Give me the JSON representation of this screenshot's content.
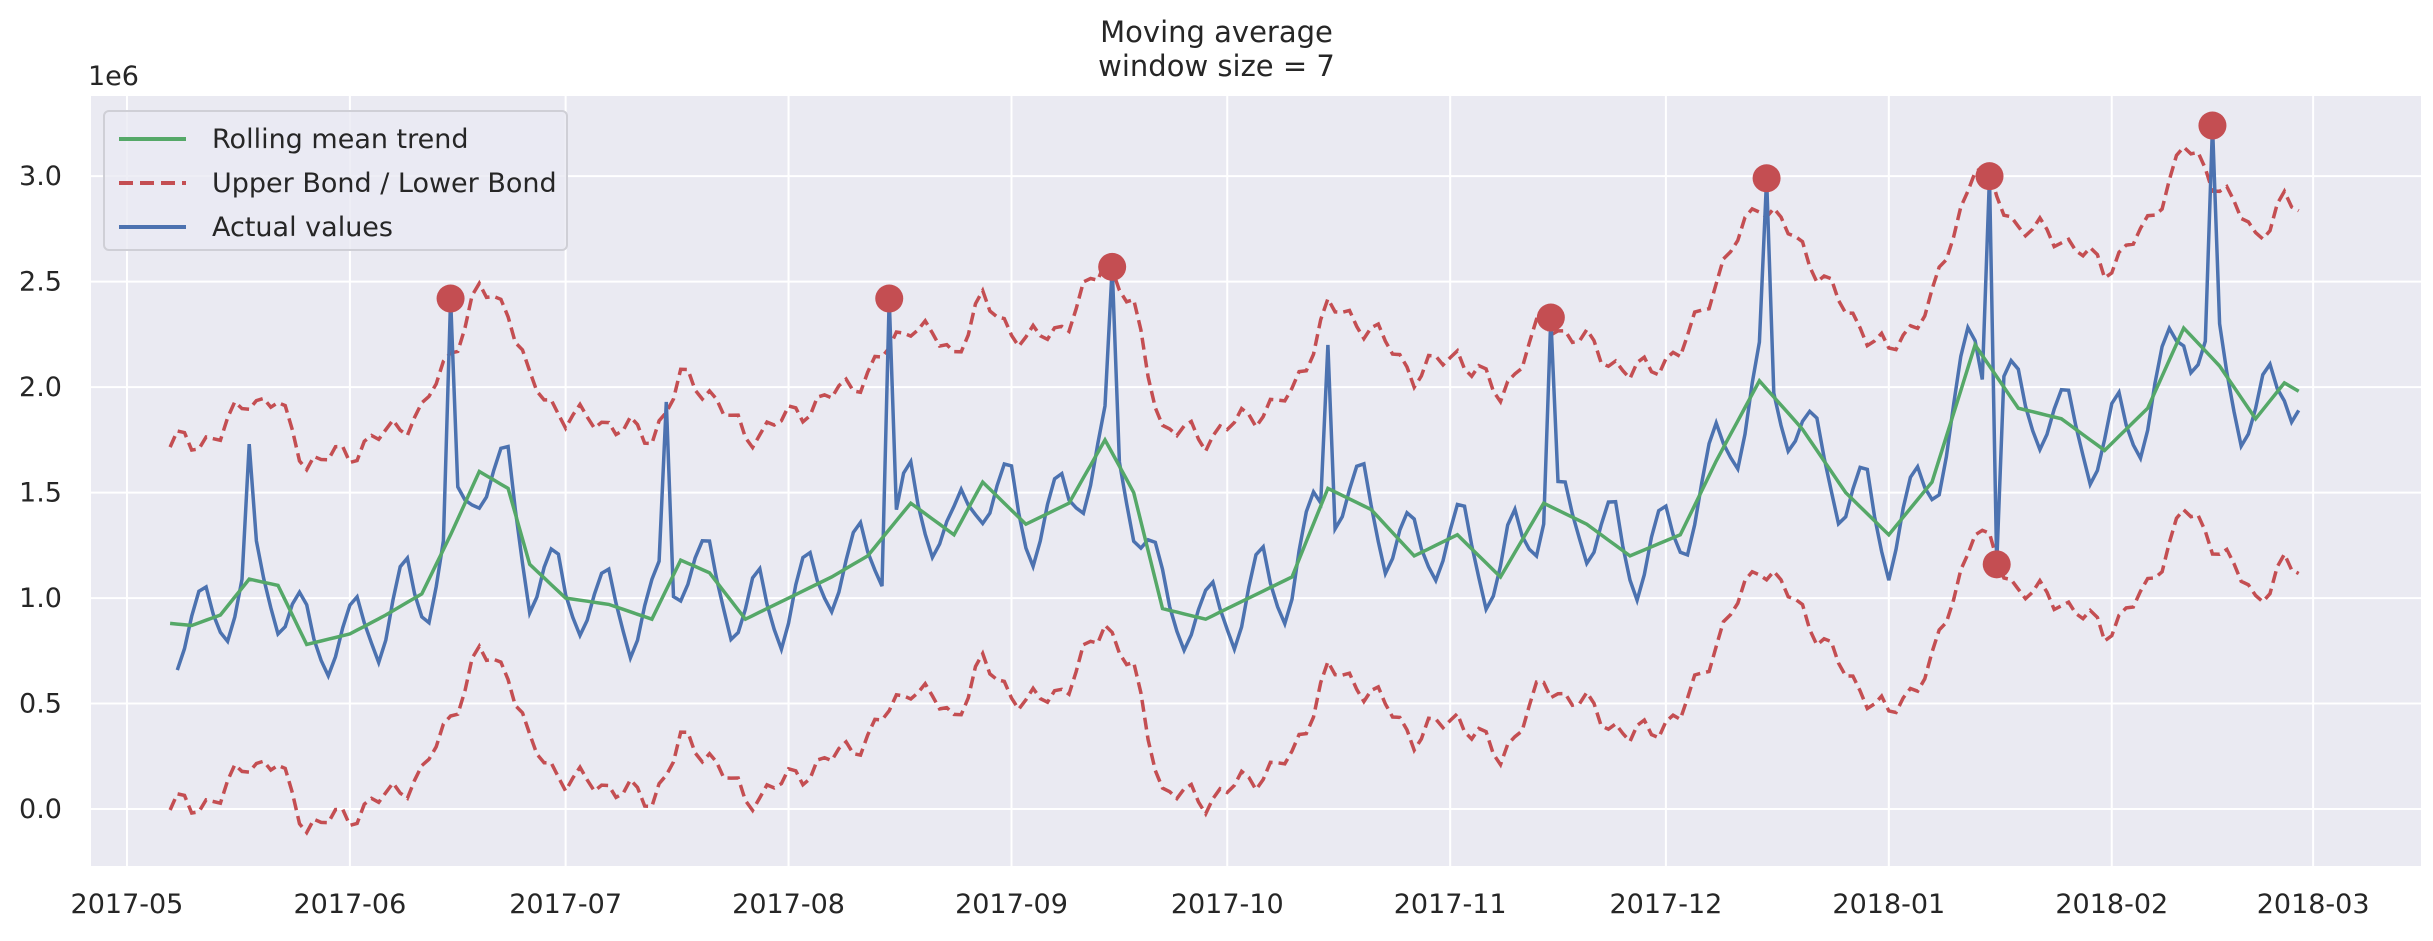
{
  "title": {
    "line1": "Moving average",
    "line2": "window size = 7"
  },
  "chart_data": {
    "type": "line",
    "title": "Moving average\nwindow size = 7",
    "xlabel": "",
    "ylabel": "",
    "y_offset_label": "1e6",
    "xlim": [
      "2017-04-26",
      "2018-03-16"
    ],
    "ylim": [
      -0.27,
      3.38
    ],
    "grid": true,
    "legend_position": "upper-left",
    "x_ticks": [
      "2017-05",
      "2017-06",
      "2017-07",
      "2017-08",
      "2017-09",
      "2017-10",
      "2017-11",
      "2017-12",
      "2018-01",
      "2018-02",
      "2018-03"
    ],
    "y_ticks": [
      "0.0",
      "0.5",
      "1.0",
      "1.5",
      "2.0",
      "2.5",
      "3.0"
    ],
    "start_date": "2017-05-08",
    "series": [
      {
        "name": "Rolling mean trend",
        "color": "#55a868",
        "style": "solid",
        "key_points": [
          {
            "x": "2017-05-07",
            "y": 0.88
          },
          {
            "x": "2017-05-10",
            "y": 0.87
          },
          {
            "x": "2017-05-14",
            "y": 0.92
          },
          {
            "x": "2017-05-18",
            "y": 1.09
          },
          {
            "x": "2017-05-22",
            "y": 1.06
          },
          {
            "x": "2017-05-26",
            "y": 0.78
          },
          {
            "x": "2017-06-01",
            "y": 0.83
          },
          {
            "x": "2017-06-06",
            "y": 0.92
          },
          {
            "x": "2017-06-11",
            "y": 1.02
          },
          {
            "x": "2017-06-15",
            "y": 1.3
          },
          {
            "x": "2017-06-19",
            "y": 1.6
          },
          {
            "x": "2017-06-23",
            "y": 1.52
          },
          {
            "x": "2017-06-26",
            "y": 1.16
          },
          {
            "x": "2017-07-01",
            "y": 1.0
          },
          {
            "x": "2017-07-07",
            "y": 0.97
          },
          {
            "x": "2017-07-13",
            "y": 0.9
          },
          {
            "x": "2017-07-17",
            "y": 1.18
          },
          {
            "x": "2017-07-21",
            "y": 1.12
          },
          {
            "x": "2017-07-26",
            "y": 0.9
          },
          {
            "x": "2017-08-01",
            "y": 1.0
          },
          {
            "x": "2017-08-07",
            "y": 1.1
          },
          {
            "x": "2017-08-12",
            "y": 1.2
          },
          {
            "x": "2017-08-18",
            "y": 1.45
          },
          {
            "x": "2017-08-24",
            "y": 1.3
          },
          {
            "x": "2017-08-28",
            "y": 1.55
          },
          {
            "x": "2017-09-03",
            "y": 1.35
          },
          {
            "x": "2017-09-09",
            "y": 1.45
          },
          {
            "x": "2017-09-14",
            "y": 1.75
          },
          {
            "x": "2017-09-18",
            "y": 1.5
          },
          {
            "x": "2017-09-22",
            "y": 0.95
          },
          {
            "x": "2017-09-28",
            "y": 0.9
          },
          {
            "x": "2017-10-04",
            "y": 1.0
          },
          {
            "x": "2017-10-10",
            "y": 1.1
          },
          {
            "x": "2017-10-15",
            "y": 1.52
          },
          {
            "x": "2017-10-21",
            "y": 1.42
          },
          {
            "x": "2017-10-27",
            "y": 1.2
          },
          {
            "x": "2017-11-02",
            "y": 1.3
          },
          {
            "x": "2017-11-08",
            "y": 1.1
          },
          {
            "x": "2017-11-14",
            "y": 1.45
          },
          {
            "x": "2017-11-20",
            "y": 1.35
          },
          {
            "x": "2017-11-26",
            "y": 1.2
          },
          {
            "x": "2017-12-03",
            "y": 1.3
          },
          {
            "x": "2017-12-08",
            "y": 1.65
          },
          {
            "x": "2017-12-14",
            "y": 2.03
          },
          {
            "x": "2017-12-20",
            "y": 1.8
          },
          {
            "x": "2017-12-26",
            "y": 1.5
          },
          {
            "x": "2018-01-01",
            "y": 1.3
          },
          {
            "x": "2018-01-07",
            "y": 1.55
          },
          {
            "x": "2018-01-13",
            "y": 2.2
          },
          {
            "x": "2018-01-19",
            "y": 1.9
          },
          {
            "x": "2018-01-25",
            "y": 1.85
          },
          {
            "x": "2018-01-31",
            "y": 1.7
          },
          {
            "x": "2018-02-06",
            "y": 1.9
          },
          {
            "x": "2018-02-11",
            "y": 2.28
          },
          {
            "x": "2018-02-16",
            "y": 2.1
          },
          {
            "x": "2018-02-21",
            "y": 1.85
          },
          {
            "x": "2018-02-25",
            "y": 2.02
          },
          {
            "x": "2018-02-27",
            "y": 1.98
          }
        ]
      },
      {
        "name": "Upper Bond / Lower Bond",
        "color": "#c44e52",
        "style": "dashed",
        "spread": 0.86,
        "note": "upper = rolling mean + spread, lower = rolling mean - spread (1e6 units)"
      },
      {
        "name": "Actual values",
        "color": "#4c72b0",
        "style": "solid",
        "base_trend": "rolling mean",
        "weekly_pattern": [
          -0.22,
          -0.12,
          0.05,
          0.18,
          0.2,
          0.02,
          -0.11
        ],
        "spikes": [
          {
            "x": "2017-05-18",
            "y": 1.73
          },
          {
            "x": "2017-06-15",
            "y": 2.42
          },
          {
            "x": "2017-07-15",
            "y": 1.93
          },
          {
            "x": "2017-08-15",
            "y": 2.42
          },
          {
            "x": "2017-09-15",
            "y": 2.57
          },
          {
            "x": "2017-10-15",
            "y": 2.2
          },
          {
            "x": "2017-11-15",
            "y": 2.33
          },
          {
            "x": "2017-12-15",
            "y": 2.99
          },
          {
            "x": "2018-01-15",
            "y": 3.0
          },
          {
            "x": "2018-02-15",
            "y": 3.24
          }
        ],
        "dips": [
          {
            "x": "2018-01-16",
            "y": 1.16
          }
        ]
      }
    ],
    "anomalies": {
      "color": "#c44e52",
      "points": [
        {
          "x": "2017-06-15",
          "y": 2.42
        },
        {
          "x": "2017-08-15",
          "y": 2.42
        },
        {
          "x": "2017-09-15",
          "y": 2.57
        },
        {
          "x": "2017-11-15",
          "y": 2.33
        },
        {
          "x": "2017-12-15",
          "y": 2.99
        },
        {
          "x": "2018-01-15",
          "y": 3.0
        },
        {
          "x": "2018-01-16",
          "y": 1.16
        },
        {
          "x": "2018-02-15",
          "y": 3.24
        }
      ]
    }
  },
  "legend": {
    "items": [
      {
        "label": "Rolling mean trend",
        "color": "#55a868",
        "style": "solid"
      },
      {
        "label": "Upper Bond / Lower Bond",
        "color": "#c44e52",
        "style": "dashed"
      },
      {
        "label": "Actual values",
        "color": "#4c72b0",
        "style": "solid"
      }
    ]
  }
}
